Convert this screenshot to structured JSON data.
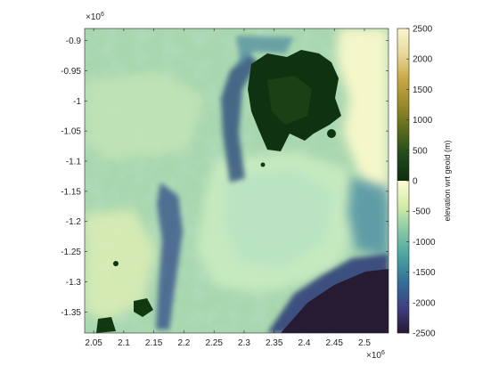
{
  "chart_data": {
    "type": "heatmap",
    "title": "",
    "x": {
      "ticks": [
        "2.05",
        "2.1",
        "2.15",
        "2.2",
        "2.25",
        "2.3",
        "2.35",
        "2.4",
        "2.45",
        "2.5"
      ],
      "tick_values": [
        2.05,
        2.1,
        2.15,
        2.2,
        2.25,
        2.3,
        2.35,
        2.4,
        2.45,
        2.5
      ],
      "lim": [
        2.035,
        2.54
      ],
      "exponent_label": "×10",
      "exponent_power": "6"
    },
    "y": {
      "ticks": [
        "-0.9",
        "-0.95",
        "-1",
        "-1.05",
        "-1.1",
        "-1.15",
        "-1.2",
        "-1.25",
        "-1.3",
        "-1.35"
      ],
      "tick_values": [
        -0.9,
        -0.95,
        -1,
        -1.05,
        -1.1,
        -1.15,
        -1.2,
        -1.25,
        -1.3,
        -1.35
      ],
      "lim": [
        -1.385,
        -0.88
      ],
      "exponent_label": "×10",
      "exponent_power": "6"
    },
    "colorbar": {
      "label": "elevation wrt geoid (m)",
      "ticks": [
        "2500",
        "2000",
        "1500",
        "1000",
        "500",
        "0",
        "-500",
        "-1000",
        "-1500",
        "-2000",
        "-2500"
      ],
      "tick_values": [
        2500,
        2000,
        1500,
        1000,
        500,
        0,
        -500,
        -1000,
        -1500,
        -2000,
        -2500
      ],
      "range": [
        -2500,
        2500
      ],
      "colors_positive": [
        "#0e2d0e",
        "#1f4a1a",
        "#5a6a1c",
        "#9a8a2a",
        "#c8a845",
        "#e8d998",
        "#fbf5d0"
      ],
      "colors_negative": [
        "#fffcd6",
        "#d2eca6",
        "#84c7a6",
        "#4aa2a0",
        "#336e98",
        "#3f3f82",
        "#261832"
      ]
    },
    "grid": false
  }
}
